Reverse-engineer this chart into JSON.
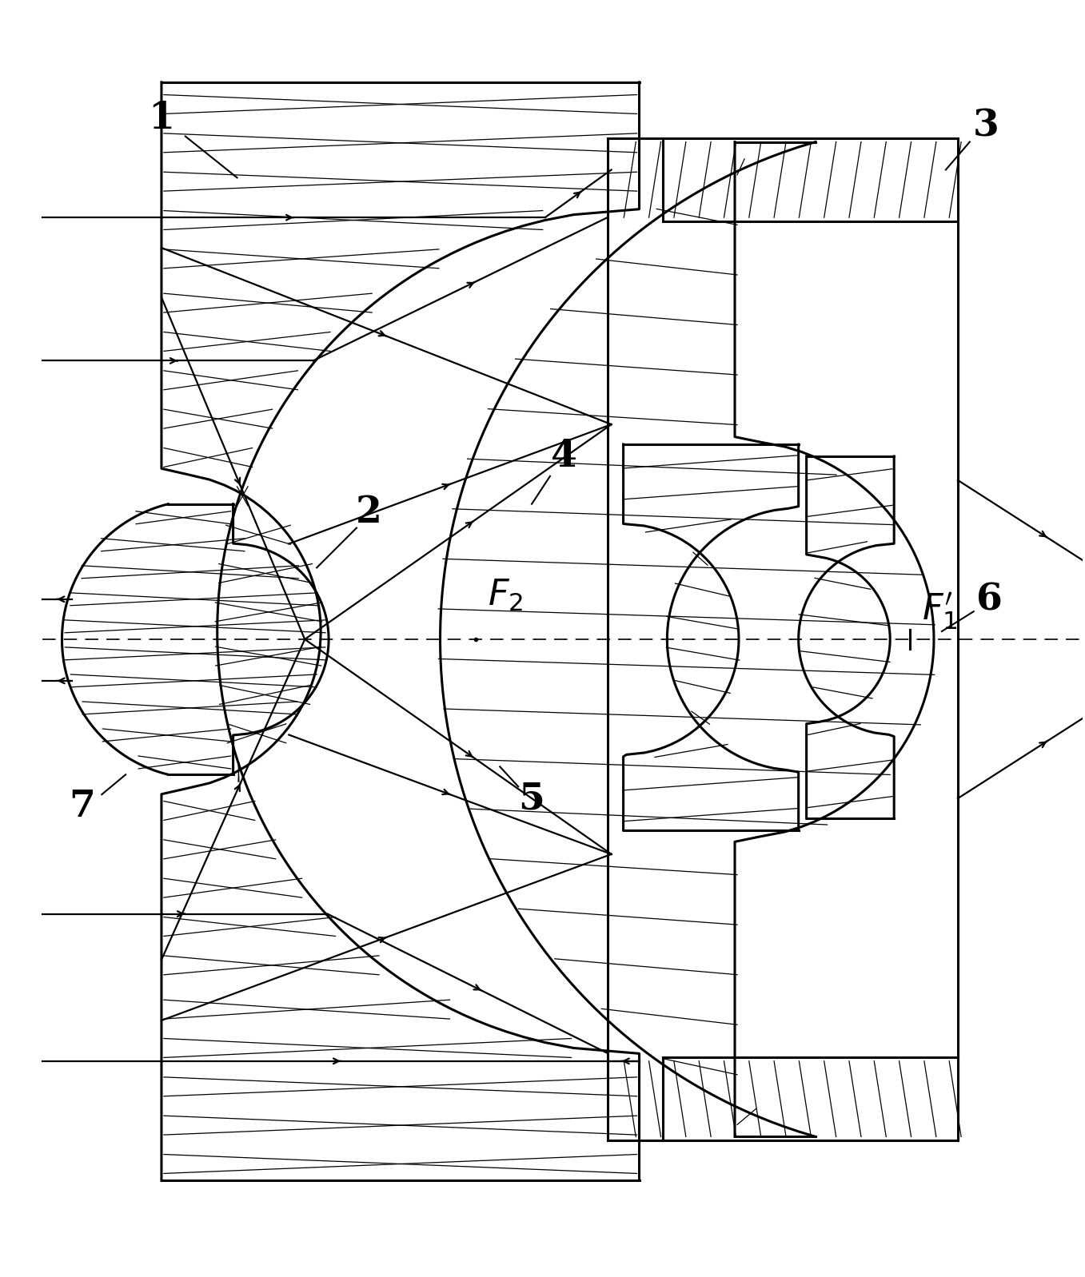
{
  "bg": "#ffffff",
  "k": "#000000",
  "lw": 2.2,
  "lwr": 1.6,
  "lwh": 0.9,
  "figsize": [
    13.57,
    15.98
  ],
  "dpi": 100
}
